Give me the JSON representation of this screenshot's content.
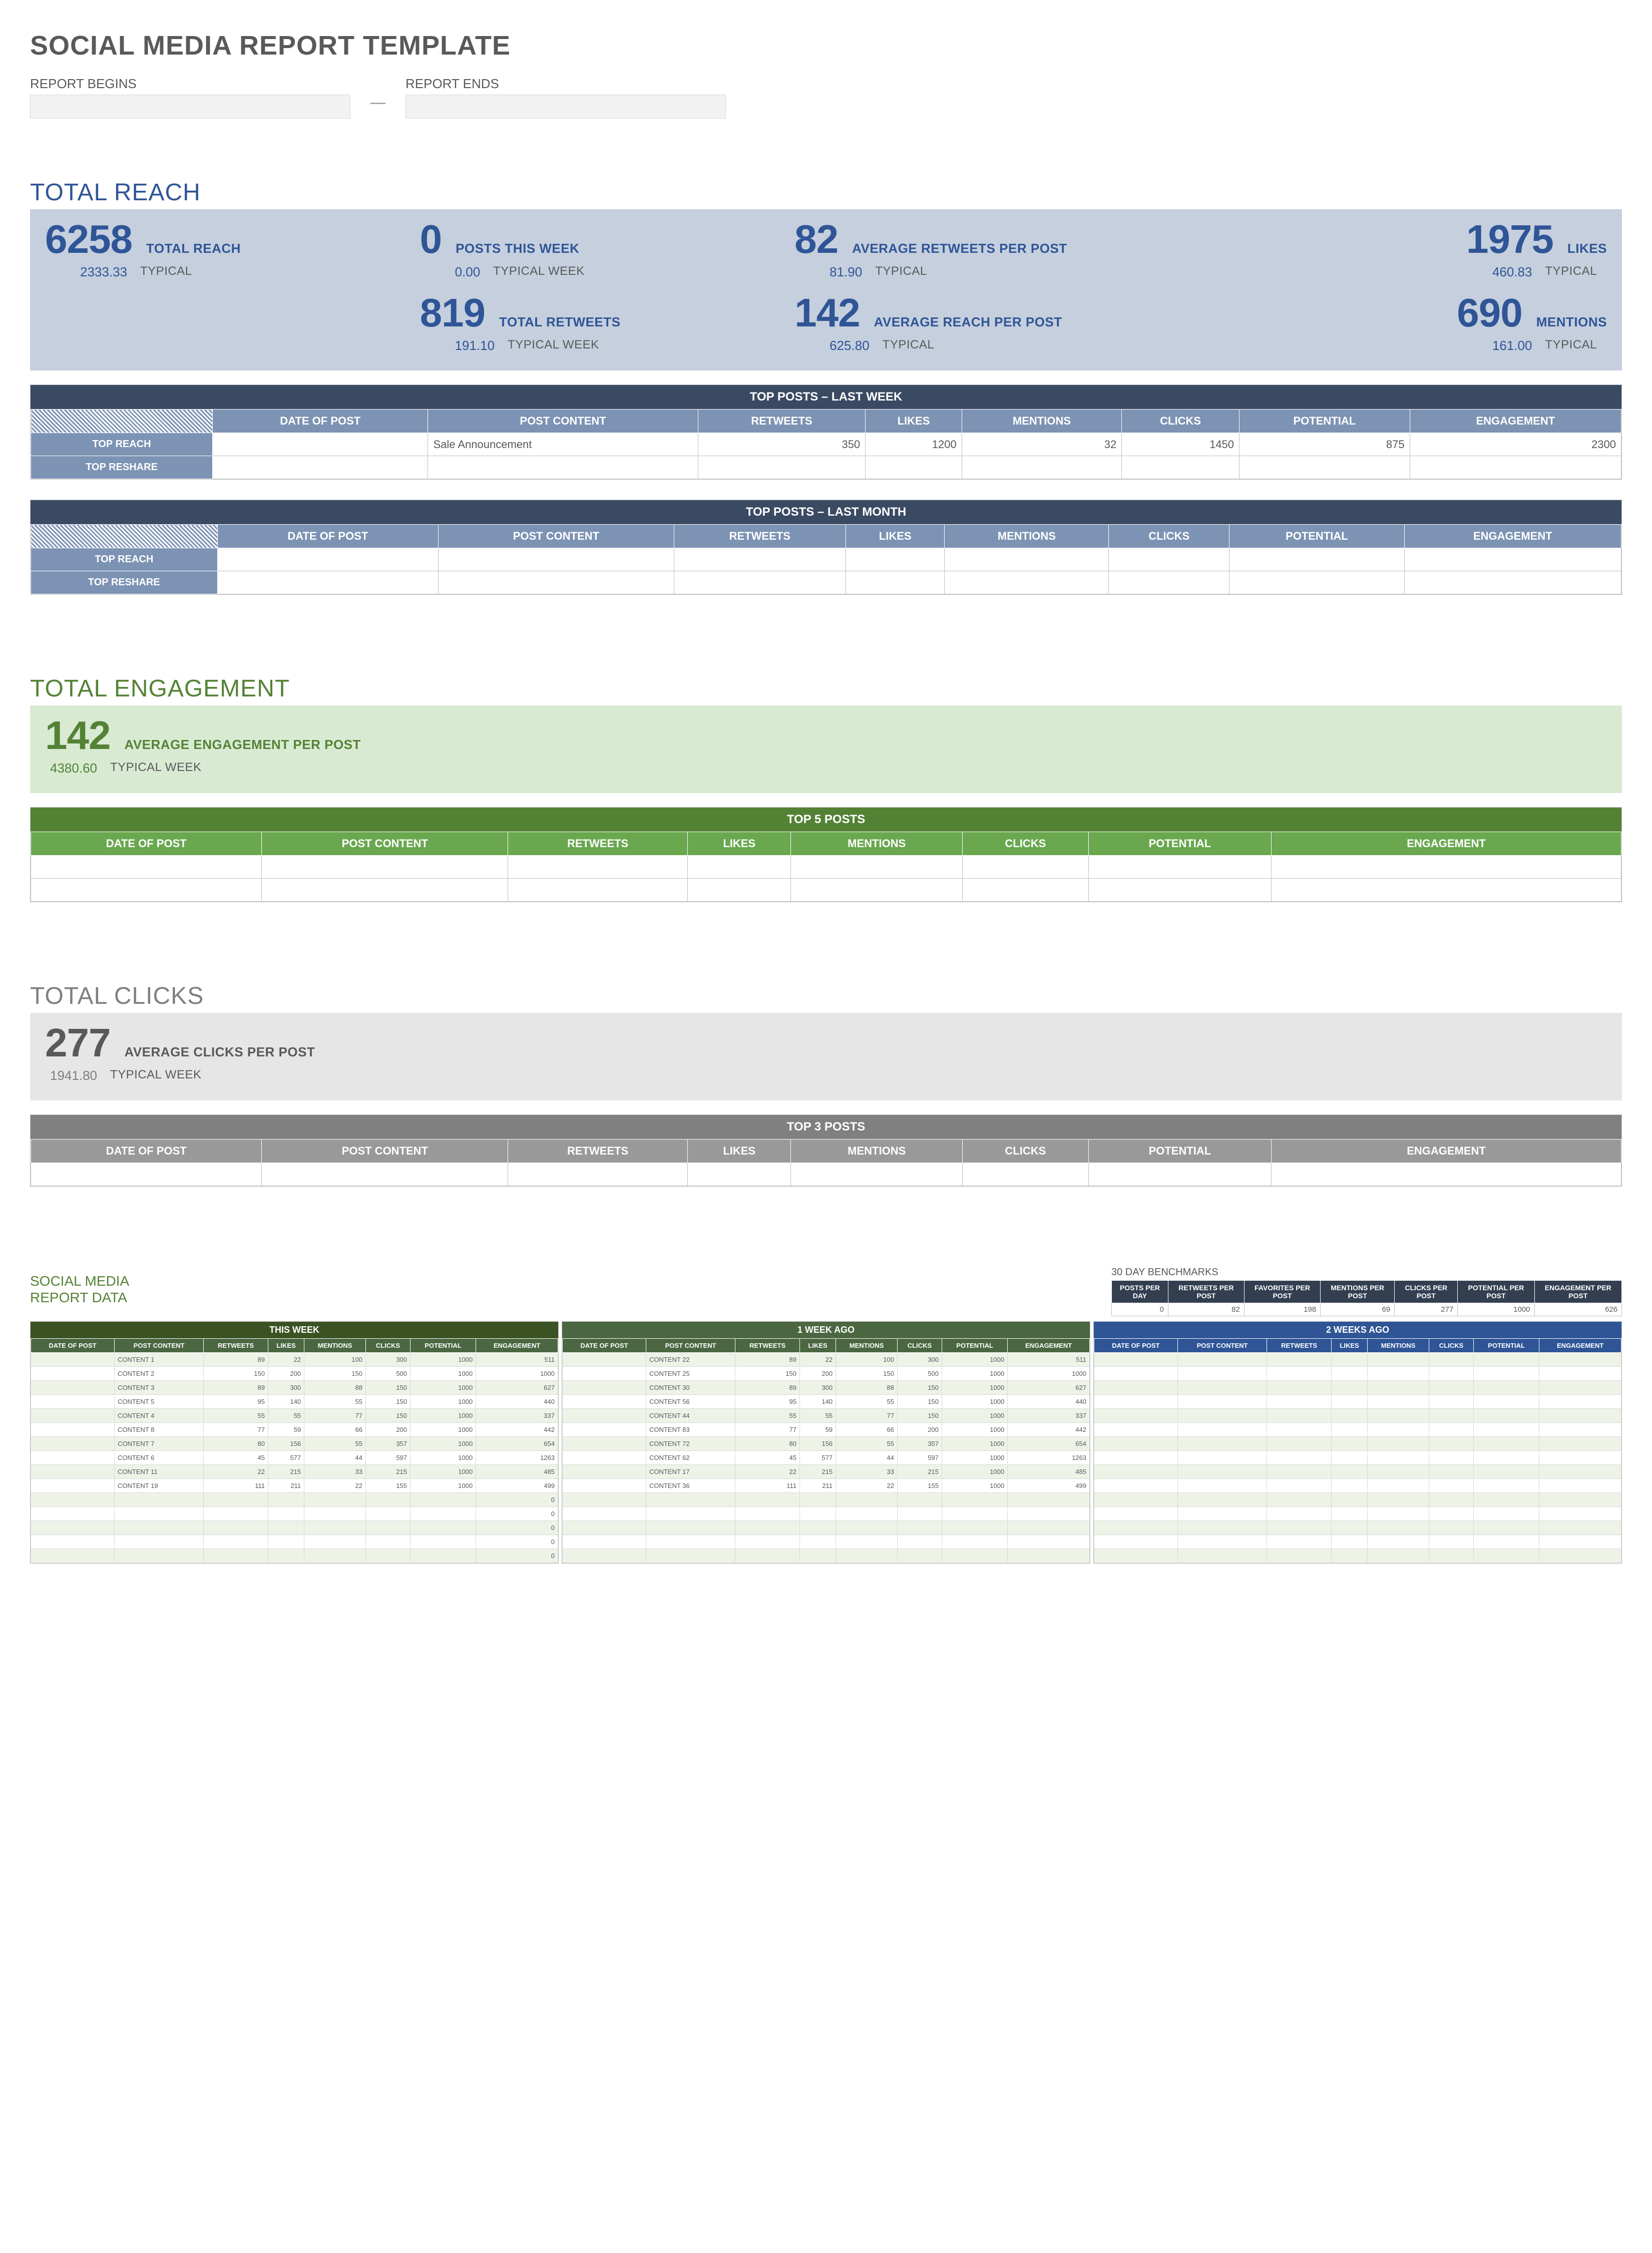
{
  "page_title": "SOCIAL MEDIA REPORT TEMPLATE",
  "date_begin_label": "REPORT BEGINS",
  "date_end_label": "REPORT ENDS",
  "dash": "—",
  "reach": {
    "title": "TOTAL REACH",
    "bg": "#c5cfdd",
    "accent": "#2f5597",
    "metrics_row1": [
      {
        "big": "6258",
        "name": "TOTAL REACH",
        "typ": "2333.33",
        "lbl": "TYPICAL"
      },
      {
        "big": "0",
        "name": "POSTS THIS WEEK",
        "typ": "0.00",
        "lbl": "TYPICAL WEEK"
      },
      {
        "big": "82",
        "name": "AVERAGE RETWEETS PER POST",
        "typ": "81.90",
        "lbl": "TYPICAL"
      },
      {
        "big": "1975",
        "name": "LIKES",
        "typ": "460.83",
        "lbl": "TYPICAL",
        "right": true
      }
    ],
    "metrics_row2": [
      null,
      {
        "big": "819",
        "name": "TOTAL RETWEETS",
        "typ": "191.10",
        "lbl": "TYPICAL WEEK"
      },
      {
        "big": "142",
        "name": "AVERAGE REACH PER POST",
        "typ": "625.80",
        "lbl": "TYPICAL"
      },
      {
        "big": "690",
        "name": "MENTIONS",
        "typ": "161.00",
        "lbl": "TYPICAL",
        "right": true
      }
    ],
    "top_posts_week": {
      "title": "TOP POSTS – LAST WEEK",
      "columns": [
        "DATE OF POST",
        "POST CONTENT",
        "RETWEETS",
        "LIKES",
        "MENTIONS",
        "CLICKS",
        "POTENTIAL",
        "ENGAGEMENT"
      ],
      "row_labels": [
        "TOP REACH",
        "TOP RESHARE"
      ],
      "rows": [
        [
          "",
          "Sale Announcement",
          "350",
          "1200",
          "32",
          "1450",
          "875",
          "2300"
        ],
        [
          "",
          "",
          "",
          "",
          "",
          "",
          "",
          ""
        ]
      ]
    },
    "top_posts_month": {
      "title": "TOP POSTS – LAST MONTH",
      "columns": [
        "DATE OF POST",
        "POST CONTENT",
        "RETWEETS",
        "LIKES",
        "MENTIONS",
        "CLICKS",
        "POTENTIAL",
        "ENGAGEMENT"
      ],
      "row_labels": [
        "TOP REACH",
        "TOP RESHARE"
      ],
      "rows": [
        [
          "",
          "",
          "",
          "",
          "",
          "",
          "",
          ""
        ],
        [
          "",
          "",
          "",
          "",
          "",
          "",
          "",
          ""
        ]
      ]
    }
  },
  "engagement": {
    "title": "TOTAL ENGAGEMENT",
    "bg": "#d9ead3",
    "accent": "#548235",
    "metric": {
      "big": "142",
      "name": "AVERAGE ENGAGEMENT PER POST",
      "typ": "4380.60",
      "lbl": "TYPICAL WEEK"
    },
    "top5": {
      "title": "TOP 5 POSTS",
      "columns": [
        "DATE OF POST",
        "POST CONTENT",
        "RETWEETS",
        "LIKES",
        "MENTIONS",
        "CLICKS",
        "POTENTIAL",
        "ENGAGEMENT"
      ],
      "rows": [
        [
          "",
          "",
          "",
          "",
          "",
          "",
          "",
          ""
        ],
        [
          "",
          "",
          "",
          "",
          "",
          "",
          "",
          ""
        ]
      ]
    }
  },
  "clicks": {
    "title": "TOTAL CLICKS",
    "bg": "#e6e6e6",
    "accent": "#595959",
    "metric": {
      "big": "277",
      "name": "AVERAGE CLICKS PER POST",
      "typ": "1941.80",
      "lbl": "TYPICAL WEEK"
    },
    "top3": {
      "title": "TOP 3 POSTS",
      "columns": [
        "DATE OF POST",
        "POST CONTENT",
        "RETWEETS",
        "LIKES",
        "MENTIONS",
        "CLICKS",
        "POTENTIAL",
        "ENGAGEMENT"
      ],
      "rows": [
        [
          "",
          "",
          "",
          "",
          "",
          "",
          "",
          ""
        ]
      ]
    }
  },
  "data_section": {
    "title": "SOCIAL MEDIA\nREPORT DATA",
    "bench_title": "30 DAY BENCHMARKS",
    "bench_cols": [
      "POSTS PER DAY",
      "RETWEETS PER POST",
      "FAVORITES PER POST",
      "MENTIONS PER POST",
      "CLICKS PER POST",
      "POTENTIAL PER POST",
      "ENGAGEMENT PER POST"
    ],
    "bench_vals": [
      "0",
      "82",
      "198",
      "69",
      "277",
      "1000",
      "626"
    ],
    "week_cols": [
      "DATE OF POST",
      "POST CONTENT",
      "RETWEETS",
      "LIKES",
      "MENTIONS",
      "CLICKS",
      "POTENTIAL",
      "ENGAGEMENT"
    ],
    "this_week": {
      "title": "THIS WEEK",
      "rows": [
        [
          "",
          "CONTENT 1",
          "89",
          "22",
          "100",
          "300",
          "1000",
          "511"
        ],
        [
          "",
          "CONTENT 2",
          "150",
          "200",
          "150",
          "500",
          "1000",
          "1000"
        ],
        [
          "",
          "CONTENT 3",
          "89",
          "300",
          "88",
          "150",
          "1000",
          "627"
        ],
        [
          "",
          "CONTENT 5",
          "95",
          "140",
          "55",
          "150",
          "1000",
          "440"
        ],
        [
          "",
          "CONTENT 4",
          "55",
          "55",
          "77",
          "150",
          "1000",
          "337"
        ],
        [
          "",
          "CONTENT 8",
          "77",
          "59",
          "66",
          "200",
          "1000",
          "442"
        ],
        [
          "",
          "CONTENT 7",
          "80",
          "156",
          "55",
          "357",
          "1000",
          "654"
        ],
        [
          "",
          "CONTENT 6",
          "45",
          "577",
          "44",
          "597",
          "1000",
          "1263"
        ],
        [
          "",
          "CONTENT 11",
          "22",
          "215",
          "33",
          "215",
          "1000",
          "485"
        ],
        [
          "",
          "CONTENT 19",
          "111",
          "211",
          "22",
          "155",
          "1000",
          "499"
        ],
        [
          "",
          "",
          "",
          "",
          "",
          "",
          "",
          "0"
        ],
        [
          "",
          "",
          "",
          "",
          "",
          "",
          "",
          "0"
        ],
        [
          "",
          "",
          "",
          "",
          "",
          "",
          "",
          "0"
        ],
        [
          "",
          "",
          "",
          "",
          "",
          "",
          "",
          "0"
        ],
        [
          "",
          "",
          "",
          "",
          "",
          "",
          "",
          "0"
        ]
      ]
    },
    "week_ago": {
      "title": "1 WEEK AGO",
      "rows": [
        [
          "",
          "CONTENT 22",
          "89",
          "22",
          "100",
          "300",
          "1000",
          "511"
        ],
        [
          "",
          "CONTENT 25",
          "150",
          "200",
          "150",
          "500",
          "1000",
          "1000"
        ],
        [
          "",
          "CONTENT 30",
          "89",
          "300",
          "88",
          "150",
          "1000",
          "627"
        ],
        [
          "",
          "CONTENT 56",
          "95",
          "140",
          "55",
          "150",
          "1000",
          "440"
        ],
        [
          "",
          "CONTENT 44",
          "55",
          "55",
          "77",
          "150",
          "1000",
          "337"
        ],
        [
          "",
          "CONTENT 83",
          "77",
          "59",
          "66",
          "200",
          "1000",
          "442"
        ],
        [
          "",
          "CONTENT 72",
          "80",
          "156",
          "55",
          "357",
          "1000",
          "654"
        ],
        [
          "",
          "CONTENT 62",
          "45",
          "577",
          "44",
          "597",
          "1000",
          "1263"
        ],
        [
          "",
          "CONTENT 17",
          "22",
          "215",
          "33",
          "215",
          "1000",
          "485"
        ],
        [
          "",
          "CONTENT 36",
          "111",
          "211",
          "22",
          "155",
          "1000",
          "499"
        ],
        [
          "",
          "",
          "",
          "",
          "",
          "",
          "",
          ""
        ],
        [
          "",
          "",
          "",
          "",
          "",
          "",
          "",
          ""
        ],
        [
          "",
          "",
          "",
          "",
          "",
          "",
          "",
          ""
        ],
        [
          "",
          "",
          "",
          "",
          "",
          "",
          "",
          ""
        ],
        [
          "",
          "",
          "",
          "",
          "",
          "",
          "",
          ""
        ]
      ]
    },
    "two_weeks": {
      "title": "2 WEEKS AGO",
      "rows": [
        [
          "",
          "",
          "",
          "",
          "",
          "",
          "",
          ""
        ],
        [
          "",
          "",
          "",
          "",
          "",
          "",
          "",
          ""
        ],
        [
          "",
          "",
          "",
          "",
          "",
          "",
          "",
          ""
        ],
        [
          "",
          "",
          "",
          "",
          "",
          "",
          "",
          ""
        ],
        [
          "",
          "",
          "",
          "",
          "",
          "",
          "",
          ""
        ],
        [
          "",
          "",
          "",
          "",
          "",
          "",
          "",
          ""
        ],
        [
          "",
          "",
          "",
          "",
          "",
          "",
          "",
          ""
        ],
        [
          "",
          "",
          "",
          "",
          "",
          "",
          "",
          ""
        ],
        [
          "",
          "",
          "",
          "",
          "",
          "",
          "",
          ""
        ],
        [
          "",
          "",
          "",
          "",
          "",
          "",
          "",
          ""
        ],
        [
          "",
          "",
          "",
          "",
          "",
          "",
          "",
          ""
        ],
        [
          "",
          "",
          "",
          "",
          "",
          "",
          "",
          ""
        ],
        [
          "",
          "",
          "",
          "",
          "",
          "",
          "",
          ""
        ],
        [
          "",
          "",
          "",
          "",
          "",
          "",
          "",
          ""
        ],
        [
          "",
          "",
          "",
          "",
          "",
          "",
          "",
          ""
        ]
      ]
    }
  }
}
